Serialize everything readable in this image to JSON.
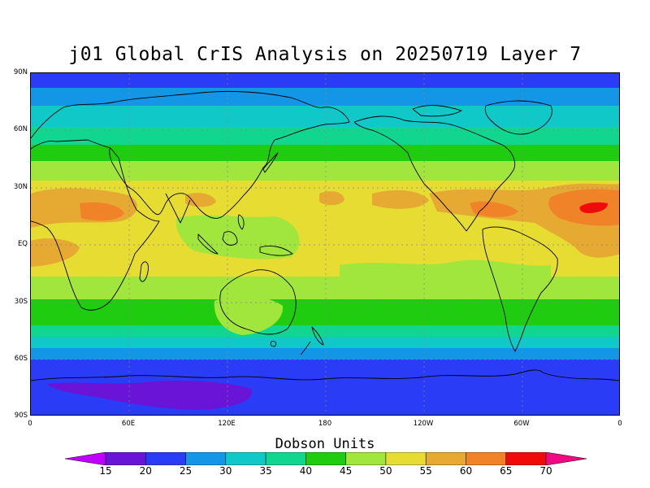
{
  "title": "j01 Global CrIS Analysis on 20250719 Layer 7",
  "map": {
    "lat_labels": [
      "90N",
      "60N",
      "30N",
      "EQ",
      "30S",
      "60S",
      "90S"
    ],
    "lon_labels": [
      "0",
      "60E",
      "120E",
      "180",
      "120W",
      "60W",
      "0"
    ]
  },
  "colorbar": {
    "title": "Dobson Units",
    "labels": [
      "15",
      "20",
      "25",
      "30",
      "35",
      "40",
      "45",
      "50",
      "55",
      "60",
      "65",
      "70"
    ],
    "colors": [
      "#c000ff",
      "#6a14d8",
      "#2a3cf5",
      "#1496e6",
      "#10c8c8",
      "#10d690",
      "#20cc10",
      "#a0e63c",
      "#e6dc32",
      "#e6aa32",
      "#f08228",
      "#f00a0a",
      "#f00a82"
    ]
  },
  "chart_data": {
    "type": "heatmap",
    "title": "j01 Global CrIS Analysis on 20250719 Layer 7",
    "quantity": "Dobson Units",
    "date": "20250719",
    "layer": "7",
    "x_range": [
      "0",
      "0"
    ],
    "y_range": [
      "90S",
      "90N"
    ],
    "contour_levels": [
      15,
      20,
      25,
      30,
      35,
      40,
      45,
      50,
      55,
      60,
      65,
      70
    ],
    "zonal_pattern": [
      {
        "lat": "90N",
        "value_range": [
          20,
          25
        ]
      },
      {
        "lat": "60N",
        "value_range": [
          40,
          45
        ]
      },
      {
        "lat": "30N",
        "value_range": [
          50,
          60
        ]
      },
      {
        "lat": "EQ",
        "value_range": [
          50,
          55
        ]
      },
      {
        "lat": "30S",
        "value_range": [
          40,
          45
        ]
      },
      {
        "lat": "60S",
        "value_range": [
          20,
          30
        ]
      },
      {
        "lat": "90S",
        "value_range": [
          15,
          25
        ]
      }
    ],
    "max_region": {
      "value_range": [
        65,
        70
      ],
      "location": "tropical North Atlantic near 20N 20W"
    },
    "min_region": {
      "value_range": [
        15,
        20
      ],
      "location": "Antarctica near 80S 60E-120E"
    }
  }
}
